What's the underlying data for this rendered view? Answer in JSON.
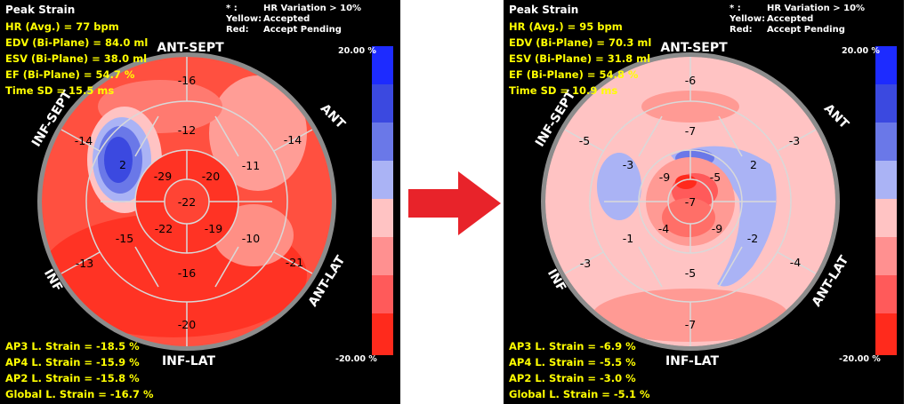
{
  "panels": [
    {
      "title": "Peak Strain",
      "stats": [
        "HR (Avg.) = 77 bpm",
        "EDV (Bi-Plane) = 84.0 ml",
        "ESV (Bi-Plane) = 38.0 ml",
        "EF (Bi-Plane) = 54.7 %",
        "Time SD = 15.5 ms"
      ],
      "legend": {
        "row1_key": "* :",
        "row1_val": "HR Variation > 10%",
        "row2_key": "Yellow:",
        "row2_val": "Accepted",
        "row3_key": "Red:",
        "row3_val": "Accept Pending"
      },
      "scale_max": "20.00 %",
      "scale_min": "-20.00 %",
      "wall_labels": {
        "ant_sept": "ANT-SEPT",
        "ant": "ANT",
        "ant_lat": "ANT-LAT",
        "inf_lat": "INF-LAT",
        "inf": "INF",
        "inf_sept": "INF-SEPT"
      },
      "segments": {
        "basal": [
          "-16",
          "-14",
          "-21",
          "-20",
          "-13",
          "-14"
        ],
        "mid": [
          "-12",
          "-11",
          "-10",
          "-16",
          "-15",
          "2"
        ],
        "apical": [
          "-20",
          "-19",
          "-22",
          "-29"
        ],
        "apex": "-22"
      },
      "strains": [
        "AP3 L. Strain = -18.5 %",
        "AP4 L. Strain = -15.9 %",
        "AP2 L. Strain = -15.8 %",
        "Global L. Strain = -16.7 %"
      ]
    },
    {
      "title": "Peak Strain",
      "stats": [
        "HR (Avg.) = 95 bpm",
        "EDV (Bi-Plane) = 70.3 ml",
        "ESV (Bi-Plane) = 31.8 ml",
        "EF (Bi-Plane) = 54.8 %",
        "Time SD = 10.9 ms"
      ],
      "legend": {
        "row1_key": "* :",
        "row1_val": "HR Variation > 10%",
        "row2_key": "Yellow:",
        "row2_val": "Accepted",
        "row3_key": "Red:",
        "row3_val": "Accept Pending"
      },
      "scale_max": "20.00 %",
      "scale_min": "-20.00 %",
      "wall_labels": {
        "ant_sept": "ANT-SEPT",
        "ant": "ANT",
        "ant_lat": "ANT-LAT",
        "inf_lat": "INF-LAT",
        "inf": "INF",
        "inf_sept": "INF-SEPT"
      },
      "segments": {
        "basal": [
          "-6",
          "-3",
          "-4",
          "-7",
          "-3",
          "-5"
        ],
        "mid": [
          "-7",
          "2",
          "-2",
          "-5",
          "-1",
          "-3"
        ],
        "apical": [
          "-5",
          "-9",
          "-4",
          "-9"
        ],
        "apex": "-7"
      },
      "strains": [
        "AP3 L. Strain = -6.9 %",
        "AP4 L. Strain = -5.5 %",
        "AP2 L. Strain = -3.0 %",
        "Global L. Strain = -5.1 %"
      ]
    }
  ],
  "colors": {
    "scale": [
      "#1d2bff",
      "#3b49e0",
      "#6a78e8",
      "#aab3f5",
      "#ffc3c3",
      "#ff9090",
      "#ff5a5a",
      "#ff2a1c"
    ],
    "arrow": "#e8232a"
  }
}
